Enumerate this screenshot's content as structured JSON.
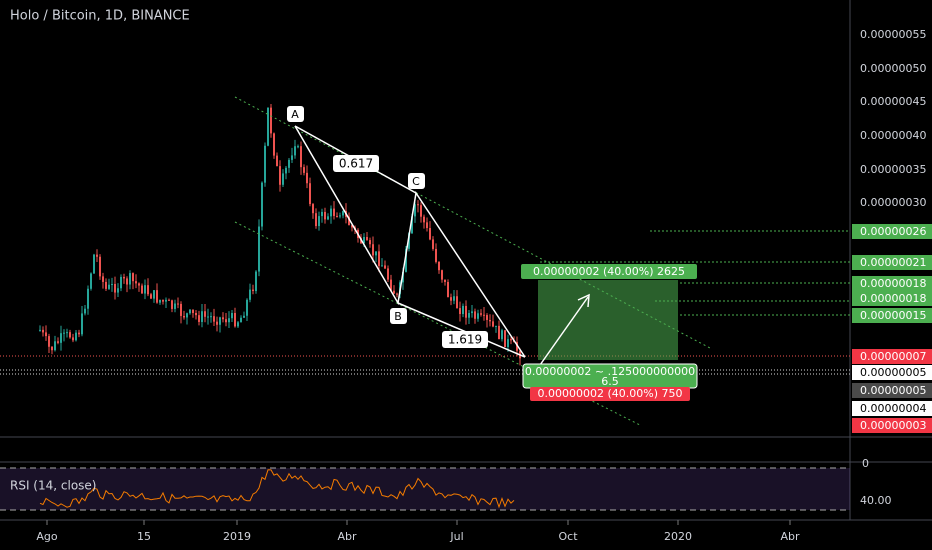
{
  "header": {
    "title": "Holo / Bitcoin, 1D, BINANCE"
  },
  "price_axis": {
    "labels": [
      "0.00000055",
      "0.00000050",
      "0.00000045",
      "0.00000040",
      "0.00000035",
      "0.00000030",
      "0.00000026",
      "0.00000021",
      "0.00000018",
      "0.00000018",
      "0.00000015",
      "0.00000007",
      "0.00000005",
      "0.00000005",
      "0.00000004",
      "0.00000003"
    ]
  },
  "rsi_pane": {
    "label": "RSI (14, close)",
    "axis_labels": [
      "0",
      "40.00"
    ]
  },
  "time_axis": {
    "labels": [
      "Ago",
      "15",
      "2019",
      "Abr",
      "Jul",
      "Oct",
      "2020",
      "Abr"
    ]
  },
  "pattern": {
    "points": [
      "A",
      "B",
      "C"
    ],
    "ratios": [
      "0.617",
      "1.619"
    ]
  },
  "position": {
    "target": "0.00000002 (40.00%) 2625",
    "entry": "0.00000002 ~ .125000000000",
    "ratio": "6.5",
    "stop": "0.00000002 (40.00%) 750"
  }
}
